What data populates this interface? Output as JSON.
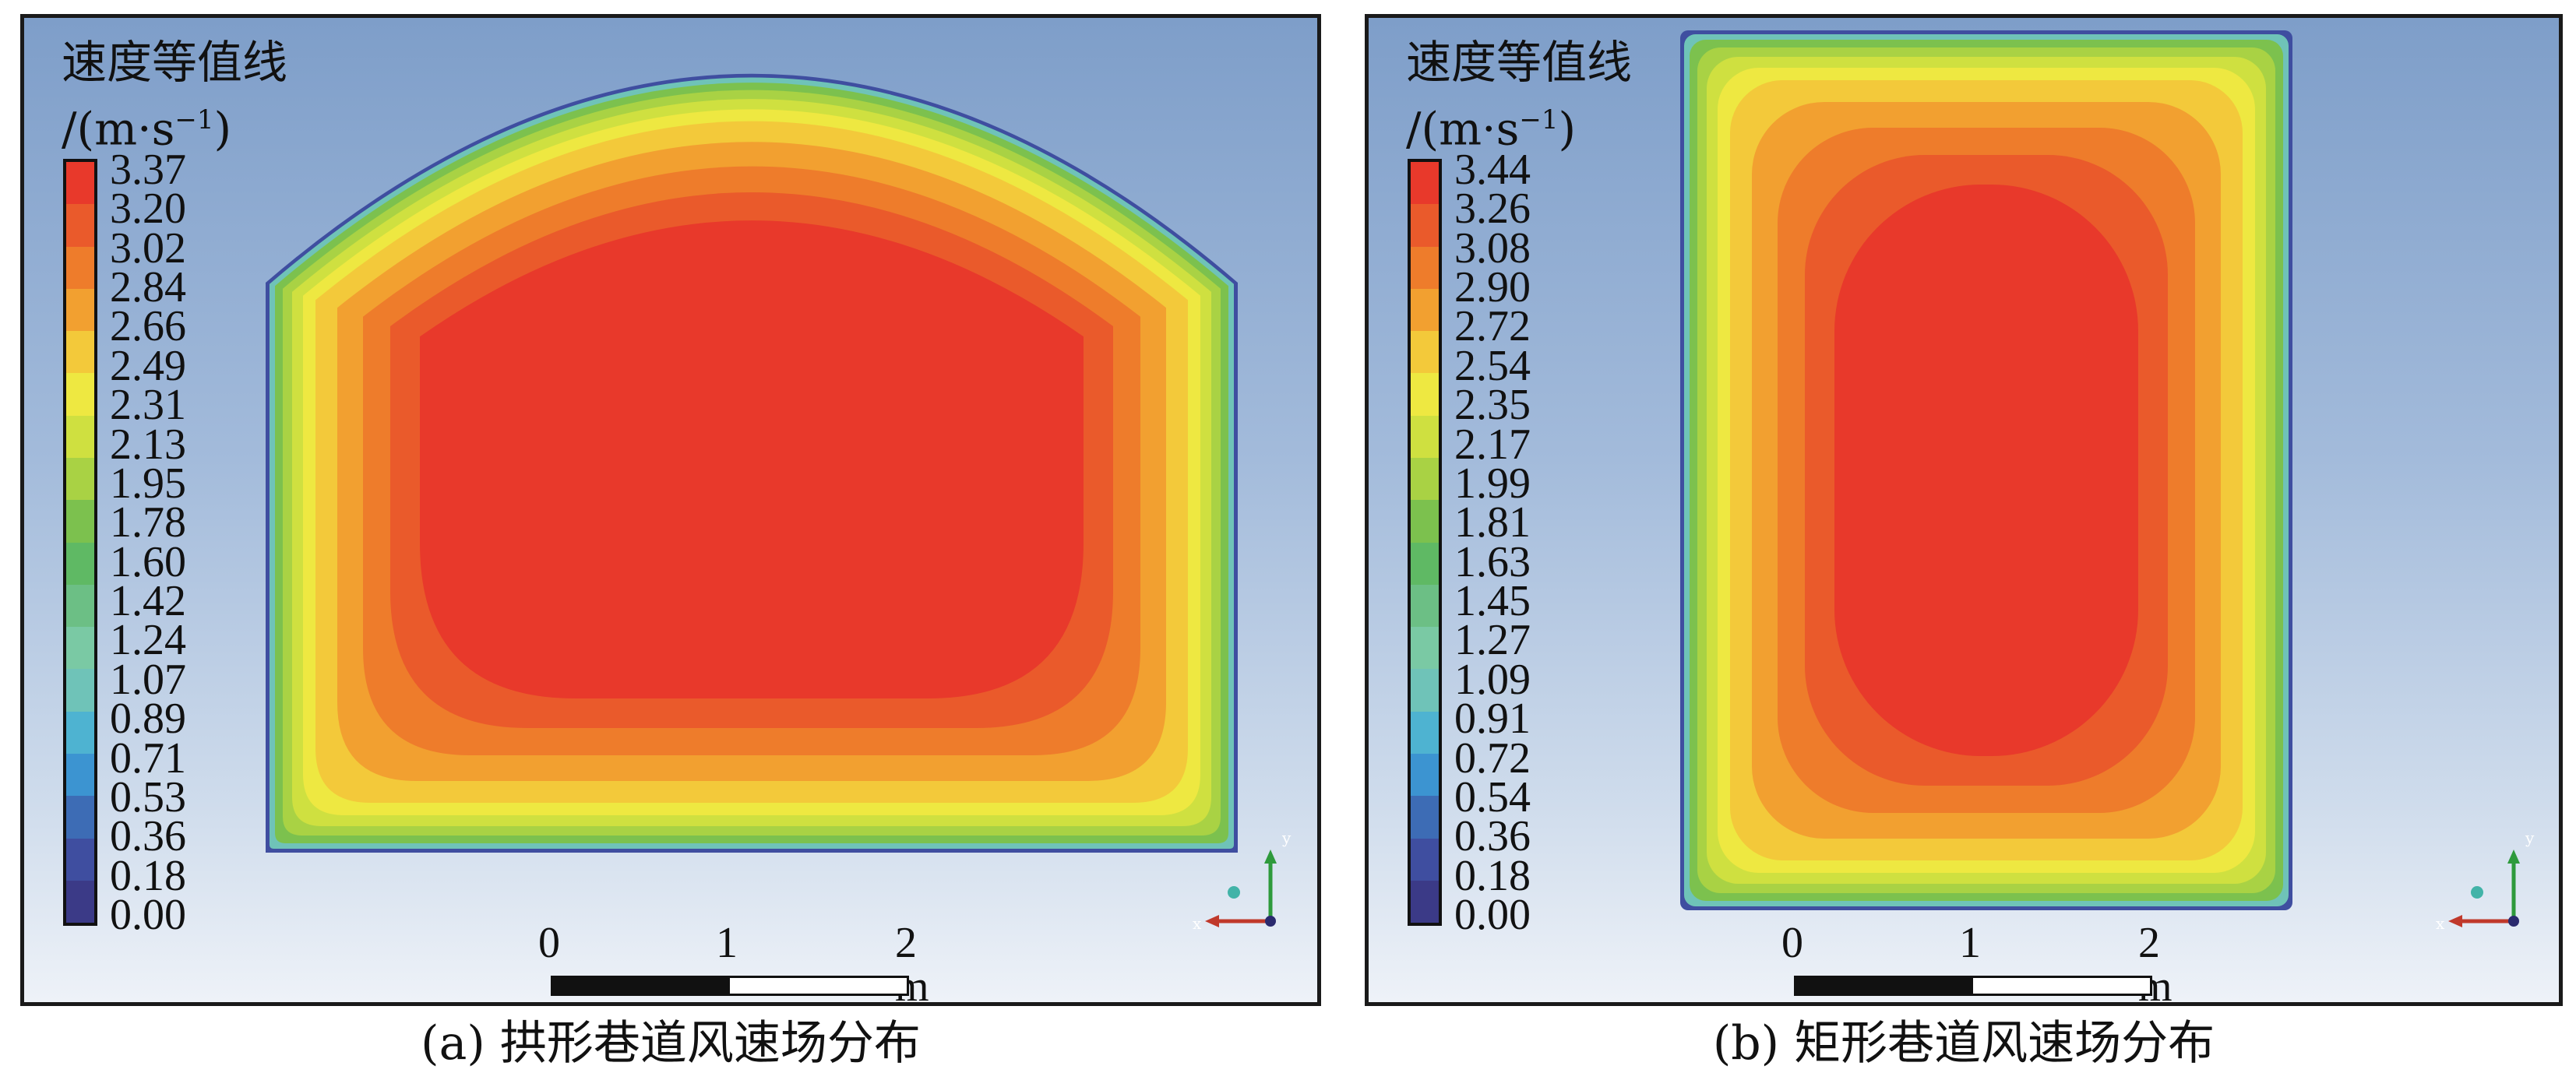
{
  "palette": [
    "#e8392b",
    "#ea5a2b",
    "#ee7c2b",
    "#f2a030",
    "#f3c93a",
    "#eee841",
    "#cfe040",
    "#a9d244",
    "#7cc14e",
    "#5fb964",
    "#6cbf85",
    "#7ac9a4",
    "#6fc3b8",
    "#4eb3d1",
    "#3c94d1",
    "#3d6cb5",
    "#3f4ea0",
    "#3b3a87"
  ],
  "panel_a": {
    "legend_title": "速度等值线",
    "legend_unit_base": "/(m·s",
    "legend_unit_exp": "−1",
    "legend_unit_close": ")",
    "ticks": [
      "3.37",
      "3.20",
      "3.02",
      "2.84",
      "2.66",
      "2.49",
      "2.31",
      "2.13",
      "1.95",
      "1.78",
      "1.60",
      "1.42",
      "1.24",
      "1.07",
      "0.89",
      "0.71",
      "0.53",
      "0.36",
      "0.18",
      "0.00"
    ],
    "scale": {
      "zero": "0",
      "one": "1",
      "two": "2 m"
    },
    "caption": "(a) 拱形巷道风速场分布"
  },
  "panel_b": {
    "legend_title": "速度等值线",
    "legend_unit_base": "/(m·s",
    "legend_unit_exp": "−1",
    "legend_unit_close": ")",
    "ticks": [
      "3.44",
      "3.26",
      "3.08",
      "2.90",
      "2.72",
      "2.54",
      "2.35",
      "2.17",
      "1.99",
      "1.81",
      "1.63",
      "1.45",
      "1.27",
      "1.09",
      "0.91",
      "0.72",
      "0.54",
      "0.36",
      "0.18",
      "0.00"
    ],
    "scale": {
      "zero": "0",
      "one": "1",
      "two": "2 m"
    },
    "caption": "(b) 矩形巷道风速场分布"
  }
}
